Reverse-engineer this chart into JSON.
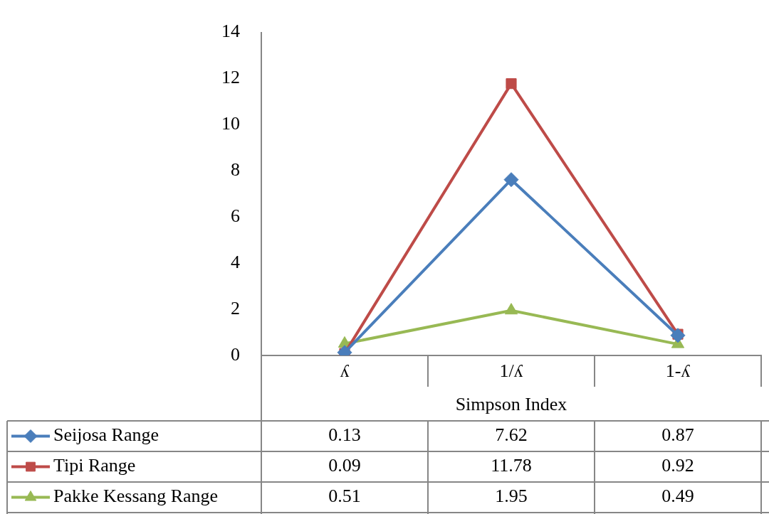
{
  "chart_data": {
    "type": "line",
    "xlabel": "Simpson Index",
    "categories": [
      "ʎ",
      "1/ʎ",
      "1-ʎ"
    ],
    "series": [
      {
        "name": "Seijosa Range",
        "color": "#4a7ebb",
        "marker": "diamond",
        "values": [
          0.13,
          7.62,
          0.87
        ]
      },
      {
        "name": "Tipi Range",
        "color": "#be4b48",
        "marker": "square",
        "values": [
          0.09,
          11.78,
          0.92
        ]
      },
      {
        "name": "Pakke Kessang Range",
        "color": "#98b954",
        "marker": "triangle",
        "values": [
          0.51,
          1.95,
          0.49
        ]
      }
    ],
    "ylim": [
      0,
      14
    ],
    "yticks": [
      0,
      2,
      4,
      6,
      8,
      10,
      12,
      14
    ],
    "grid": false,
    "legend": "bottom",
    "data_labels": true,
    "line_style": "solid"
  }
}
